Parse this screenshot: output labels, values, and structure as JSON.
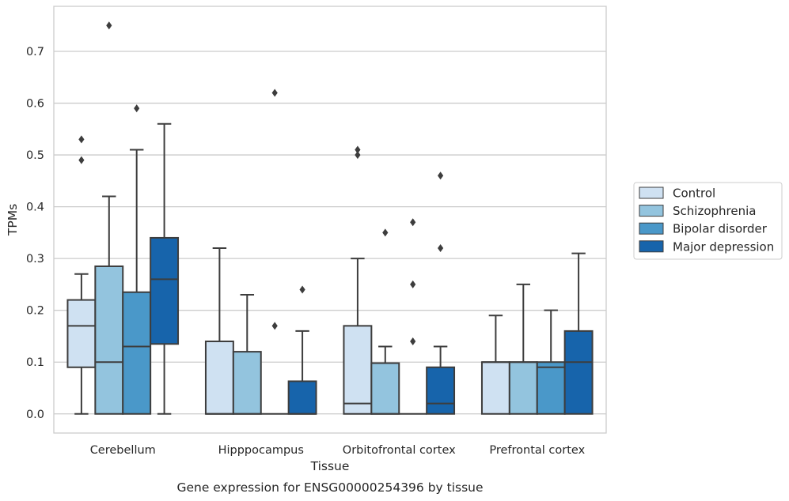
{
  "chart_data": {
    "type": "box",
    "title": "",
    "caption": "Gene expression for ENSG00000254396 by tissue",
    "xlabel": "Tissue",
    "ylabel": "TPMs",
    "ylim": [
      -0.037,
      0.787
    ],
    "yticks": [
      0.0,
      0.1,
      0.2,
      0.3,
      0.4,
      0.5,
      0.6,
      0.7
    ],
    "ytick_labels": [
      "0.0",
      "0.1",
      "0.2",
      "0.3",
      "0.4",
      "0.5",
      "0.6",
      "0.7"
    ],
    "grid": "horizontal",
    "legend_position": "right",
    "categories": [
      "Cerebellum",
      "Hipppocampus",
      "Orbitofrontal cortex",
      "Prefrontal cortex"
    ],
    "series": [
      {
        "name": "Control",
        "color": "#cfe1f2",
        "boxes": [
          {
            "whisker_low": 0.0,
            "q1": 0.09,
            "median": 0.17,
            "q3": 0.22,
            "whisker_high": 0.27,
            "outliers": [
              0.49,
              0.53
            ]
          },
          {
            "whisker_low": 0.0,
            "q1": 0.0,
            "median": 0.0,
            "q3": 0.14,
            "whisker_high": 0.32,
            "outliers": []
          },
          {
            "whisker_low": 0.0,
            "q1": 0.0,
            "median": 0.02,
            "q3": 0.17,
            "whisker_high": 0.3,
            "outliers": [
              0.5,
              0.51
            ]
          },
          {
            "whisker_low": 0.0,
            "q1": 0.0,
            "median": 0.1,
            "q3": 0.1,
            "whisker_high": 0.19,
            "outliers": []
          }
        ]
      },
      {
        "name": "Schizophrenia",
        "color": "#93c4de",
        "boxes": [
          {
            "whisker_low": 0.0,
            "q1": 0.0,
            "median": 0.1,
            "q3": 0.285,
            "whisker_high": 0.42,
            "outliers": [
              0.75
            ]
          },
          {
            "whisker_low": 0.0,
            "q1": 0.0,
            "median": 0.0,
            "q3": 0.12,
            "whisker_high": 0.23,
            "outliers": []
          },
          {
            "whisker_low": 0.0,
            "q1": 0.0,
            "median": 0.0,
            "q3": 0.098,
            "whisker_high": 0.13,
            "outliers": [
              0.35
            ]
          },
          {
            "whisker_low": 0.0,
            "q1": 0.0,
            "median": 0.1,
            "q3": 0.1,
            "whisker_high": 0.25,
            "outliers": []
          }
        ]
      },
      {
        "name": "Bipolar disorder",
        "color": "#4a98c9",
        "boxes": [
          {
            "whisker_low": 0.0,
            "q1": 0.0,
            "median": 0.13,
            "q3": 0.235,
            "whisker_high": 0.51,
            "outliers": [
              0.59
            ]
          },
          {
            "whisker_low": 0.0,
            "q1": 0.0,
            "median": 0.0,
            "q3": 0.0,
            "whisker_high": 0.0,
            "outliers": [
              0.17,
              0.62
            ]
          },
          {
            "whisker_low": 0.0,
            "q1": 0.0,
            "median": 0.0,
            "q3": 0.0,
            "whisker_high": 0.0,
            "outliers": [
              0.14,
              0.25,
              0.37
            ]
          },
          {
            "whisker_low": 0.0,
            "q1": 0.0,
            "median": 0.09,
            "q3": 0.1,
            "whisker_high": 0.2,
            "outliers": []
          }
        ]
      },
      {
        "name": "Major depression",
        "color": "#1764ab",
        "boxes": [
          {
            "whisker_low": 0.0,
            "q1": 0.135,
            "median": 0.26,
            "q3": 0.34,
            "whisker_high": 0.56,
            "outliers": []
          },
          {
            "whisker_low": 0.0,
            "q1": 0.0,
            "median": 0.0,
            "q3": 0.063,
            "whisker_high": 0.16,
            "outliers": [
              0.24
            ]
          },
          {
            "whisker_low": 0.0,
            "q1": 0.0,
            "median": 0.02,
            "q3": 0.09,
            "whisker_high": 0.13,
            "outliers": [
              0.32,
              0.46
            ]
          },
          {
            "whisker_low": 0.0,
            "q1": 0.0,
            "median": 0.1,
            "q3": 0.16,
            "whisker_high": 0.31,
            "outliers": []
          }
        ]
      }
    ]
  }
}
